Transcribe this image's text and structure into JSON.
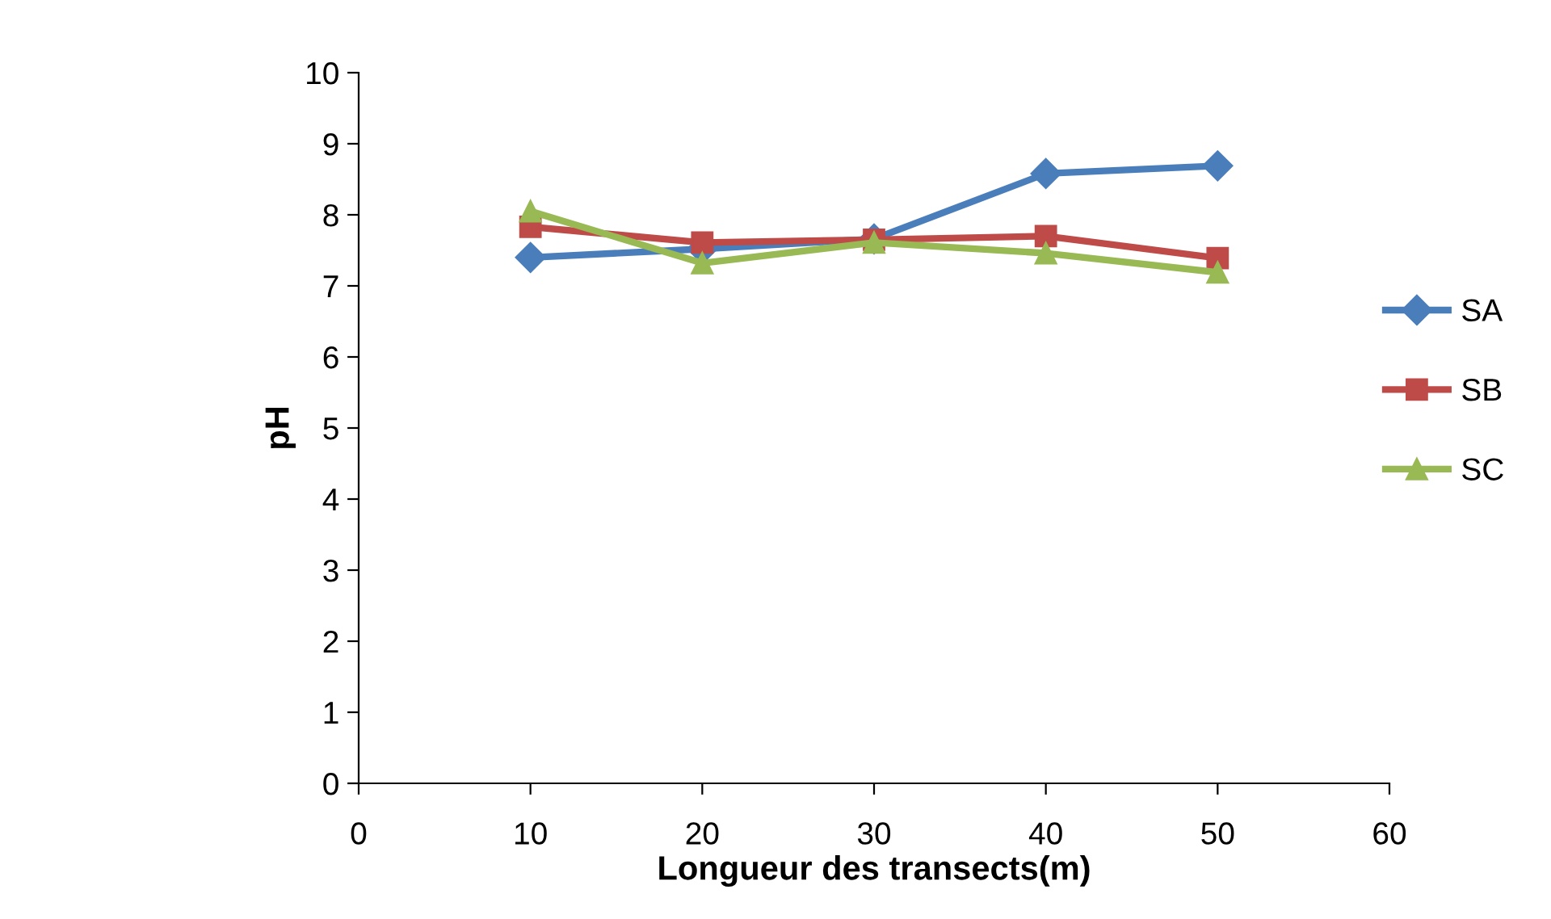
{
  "chart_data": {
    "type": "line",
    "xlabel": "Longueur des transects(m)",
    "ylabel": "pH",
    "x": [
      10,
      20,
      30,
      40,
      50
    ],
    "xlim": [
      0,
      60
    ],
    "xticks": [
      0,
      10,
      20,
      30,
      40,
      50,
      60
    ],
    "ylim": [
      0,
      10
    ],
    "yticks": [
      0,
      1,
      2,
      3,
      4,
      5,
      6,
      7,
      8,
      9,
      10
    ],
    "grid": false,
    "legend": "right",
    "series": [
      {
        "name": "SA",
        "color": "#4a7ebb",
        "marker": "diamond",
        "values": [
          7.4,
          7.52,
          7.66,
          8.58,
          8.69
        ]
      },
      {
        "name": "SB",
        "color": "#be4b48",
        "marker": "square",
        "values": [
          7.83,
          7.61,
          7.65,
          7.7,
          7.39
        ]
      },
      {
        "name": "SC",
        "color": "#98b954",
        "marker": "triangle",
        "values": [
          8.05,
          7.32,
          7.61,
          7.46,
          7.19
        ]
      }
    ]
  }
}
